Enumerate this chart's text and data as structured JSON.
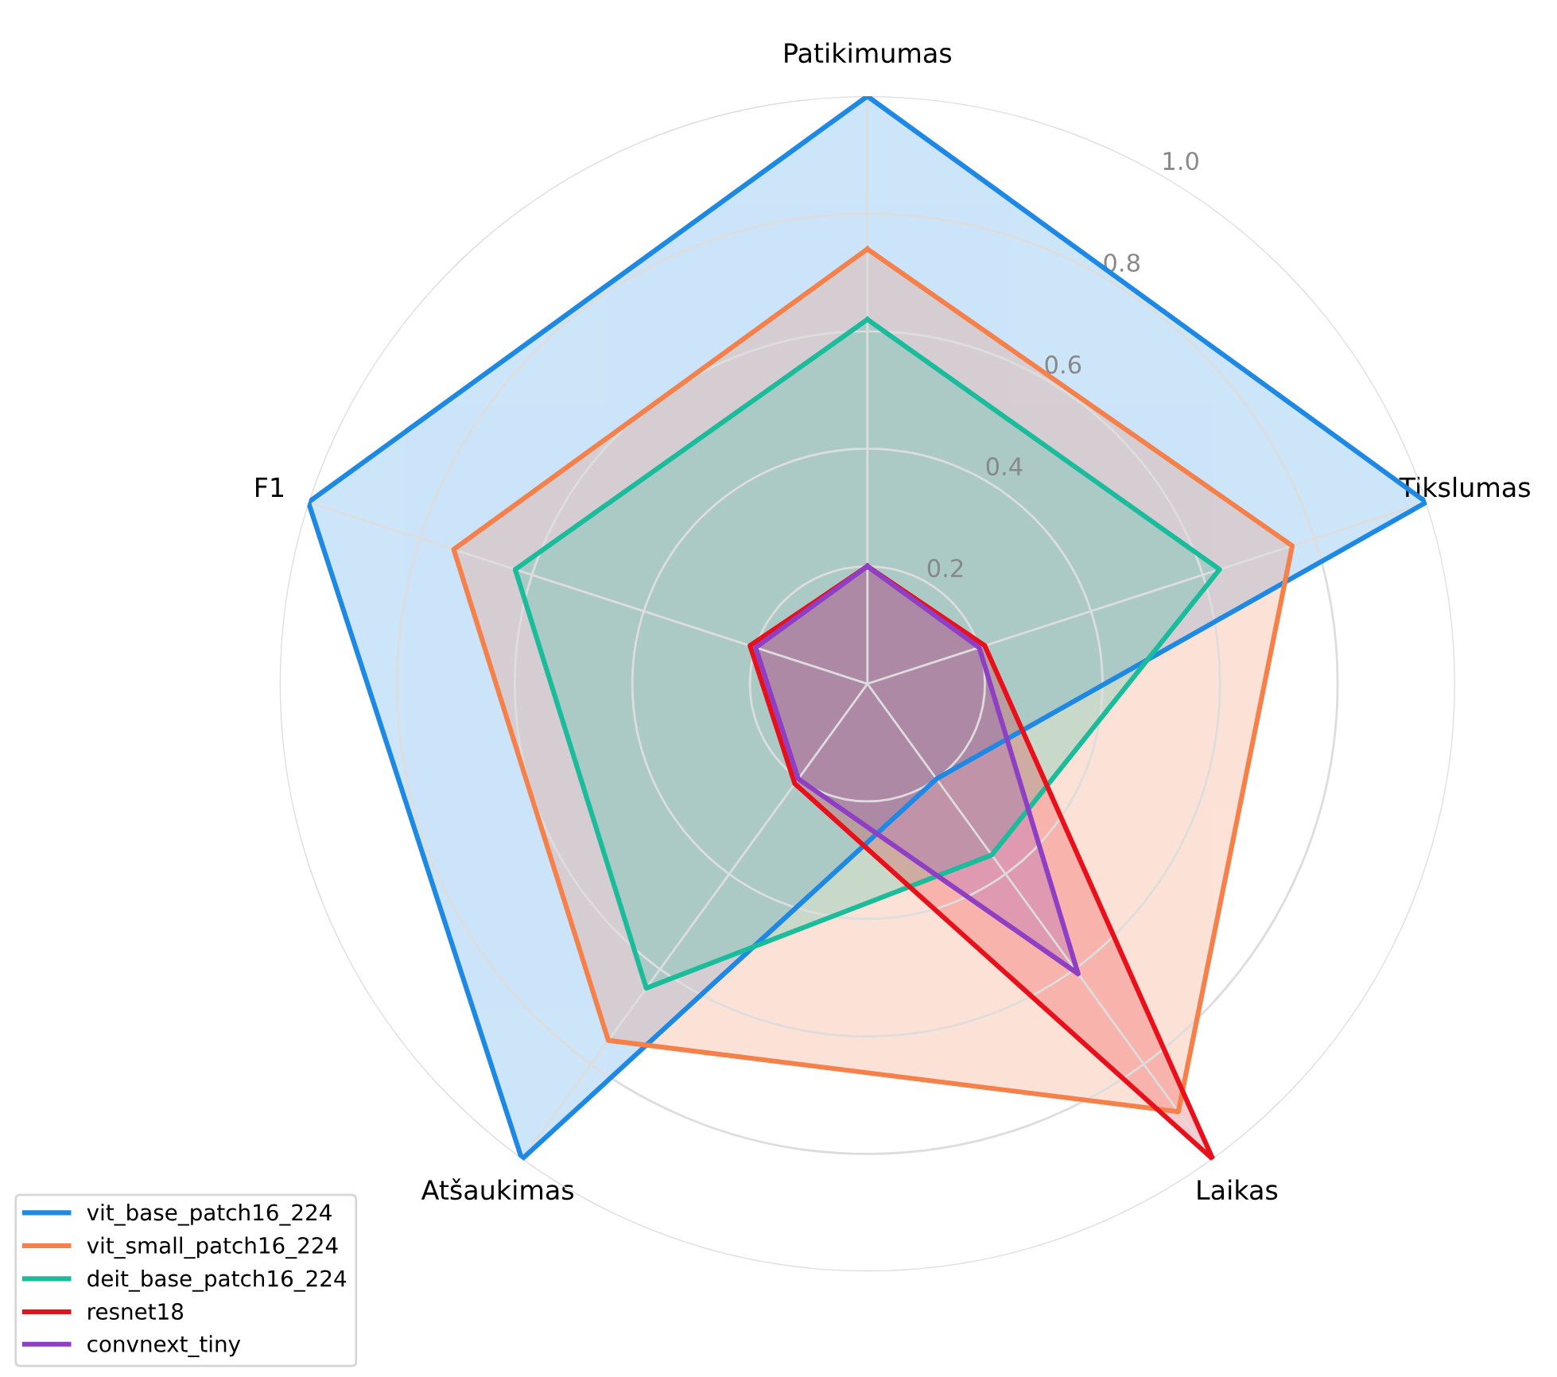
{
  "chart_data": {
    "type": "radar",
    "categories": [
      "Patikimumas",
      "Tikslumas",
      "Laikas",
      "Atšaukimas",
      "F1"
    ],
    "series": [
      {
        "name": "vit_base_patch16_224",
        "color": "#1e88e5",
        "values": [
          1.0,
          1.0,
          0.2,
          1.0,
          1.0
        ]
      },
      {
        "name": "vit_small_patch16_224",
        "color": "#f5804a",
        "values": [
          0.74,
          0.76,
          0.9,
          0.75,
          0.74
        ]
      },
      {
        "name": "deit_base_patch16_224",
        "color": "#1abc9c",
        "values": [
          0.62,
          0.63,
          0.36,
          0.64,
          0.63
        ]
      },
      {
        "name": "resnet18",
        "color": "#e8101a",
        "values": [
          0.2,
          0.21,
          1.0,
          0.21,
          0.21
        ]
      },
      {
        "name": "convnext_tiny",
        "color": "#8e3fc4",
        "values": [
          0.2,
          0.2,
          0.61,
          0.2,
          0.2
        ]
      }
    ],
    "ylim": [
      0,
      1.0
    ],
    "yticks": [
      0.2,
      0.4,
      0.6,
      0.8,
      {
        "value": 1,
        "label": "1.0"
      }
    ],
    "grid": true,
    "legend": "bottom left",
    "marker": "none",
    "line_style": "solid"
  }
}
